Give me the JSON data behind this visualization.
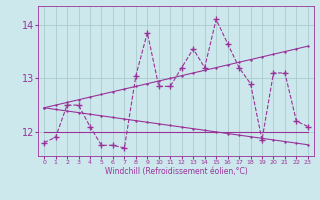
{
  "xlabel": "Windchill (Refroidissement éolien,°C)",
  "x": [
    0,
    1,
    2,
    3,
    4,
    5,
    6,
    7,
    8,
    9,
    10,
    11,
    12,
    13,
    14,
    15,
    16,
    17,
    18,
    19,
    20,
    21,
    22,
    23
  ],
  "y_main": [
    11.8,
    11.9,
    12.5,
    12.5,
    12.1,
    11.75,
    11.75,
    11.7,
    13.05,
    13.85,
    12.85,
    12.85,
    13.2,
    13.55,
    13.2,
    14.1,
    13.65,
    13.2,
    12.9,
    11.85,
    13.1,
    13.1,
    12.2,
    12.1
  ],
  "y_trend_up": [
    12.45,
    12.5,
    12.55,
    12.6,
    12.65,
    12.7,
    12.75,
    12.8,
    12.85,
    12.9,
    12.95,
    13.0,
    13.05,
    13.1,
    13.15,
    13.2,
    13.25,
    13.3,
    13.35,
    13.4,
    13.45,
    13.5,
    13.55,
    13.6
  ],
  "y_trend_down": [
    12.45,
    12.42,
    12.39,
    12.36,
    12.33,
    12.3,
    12.27,
    12.24,
    12.21,
    12.18,
    12.15,
    12.12,
    12.09,
    12.06,
    12.03,
    12.0,
    11.97,
    11.94,
    11.91,
    11.88,
    11.85,
    11.82,
    11.79,
    11.76
  ],
  "y_flat": [
    12.0,
    12.0,
    12.0,
    12.0,
    12.0,
    12.0,
    12.0,
    12.0,
    12.0,
    12.0,
    12.0,
    12.0,
    12.0,
    12.0,
    12.0,
    12.0,
    12.0,
    12.0,
    12.0,
    12.0,
    12.0,
    12.0,
    12.0,
    12.0
  ],
  "color": "#993399",
  "bg_color": "#cce8ec",
  "grid_color": "#aacccc",
  "ylim": [
    11.55,
    14.35
  ],
  "yticks": [
    12,
    13,
    14
  ],
  "line_width": 0.8,
  "marker": "+",
  "marker_size": 4
}
